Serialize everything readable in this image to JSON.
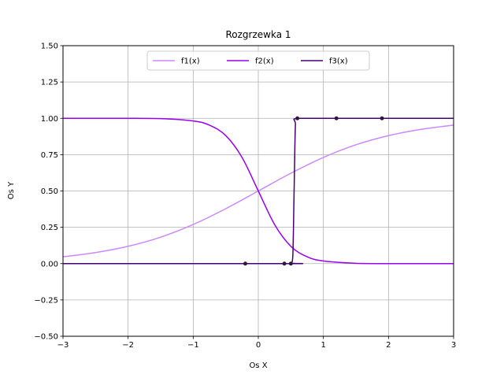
{
  "chart_data": {
    "type": "line",
    "title": "Rozgrzewka 1",
    "xlabel": "Os X",
    "ylabel": "Os Y",
    "xlim": [
      -3,
      3
    ],
    "ylim": [
      -0.5,
      1.5
    ],
    "xticks": [
      -3,
      -2,
      -1,
      0,
      1,
      2,
      3
    ],
    "xtick_labels": [
      "−3",
      "−2",
      "−1",
      "0",
      "1",
      "2",
      "3"
    ],
    "yticks": [
      -0.5,
      -0.25,
      0,
      0.25,
      0.5,
      0.75,
      1,
      1.25,
      1.5
    ],
    "ytick_labels": [
      "−0.50",
      "−0.25",
      "0.00",
      "0.25",
      "0.50",
      "0.75",
      "1.00",
      "1.25",
      "1.50"
    ],
    "grid": true,
    "legend_position": "top-center",
    "series": [
      {
        "name": "f1(x)",
        "color": "#cc88ff",
        "x": [
          -3,
          -2.5,
          -2,
          -1.5,
          -1,
          -0.5,
          0,
          0.5,
          1,
          1.5,
          2,
          2.5,
          3
        ],
        "y": [
          0.047,
          0.076,
          0.119,
          0.182,
          0.269,
          0.378,
          0.5,
          0.622,
          0.731,
          0.818,
          0.881,
          0.924,
          0.953
        ]
      },
      {
        "name": "f2(x)",
        "color": "#9900ee",
        "x": [
          -3,
          -2,
          -1.5,
          -1,
          -0.75,
          -0.5,
          -0.25,
          0,
          0.25,
          0.5,
          0.75,
          1,
          1.5,
          2,
          3
        ],
        "y": [
          1.0,
          1.0,
          0.998,
          0.982,
          0.953,
          0.881,
          0.731,
          0.5,
          0.269,
          0.119,
          0.047,
          0.018,
          0.002,
          0.0,
          0.0
        ]
      },
      {
        "name": "f3(x)",
        "color": "#440077",
        "x": [
          -3,
          0.4,
          0.5,
          0.53,
          0.55,
          0.57,
          0.6,
          1.2,
          1.9,
          3
        ],
        "y": [
          0,
          0,
          0.003,
          0.05,
          0.5,
          0.95,
          1,
          1,
          1,
          1
        ]
      }
    ],
    "markers": [
      {
        "series": "f3(x)",
        "x": -0.2,
        "y": 0
      },
      {
        "series": "f3(x)",
        "x": 0.4,
        "y": 0
      },
      {
        "series": "f3(x)",
        "x": 0.5,
        "y": 0
      },
      {
        "series": "f3(x)",
        "x": 0.6,
        "y": 1
      },
      {
        "series": "f3(x)",
        "x": 1.2,
        "y": 1
      },
      {
        "series": "f3(x)",
        "x": 1.9,
        "y": 1
      }
    ]
  }
}
